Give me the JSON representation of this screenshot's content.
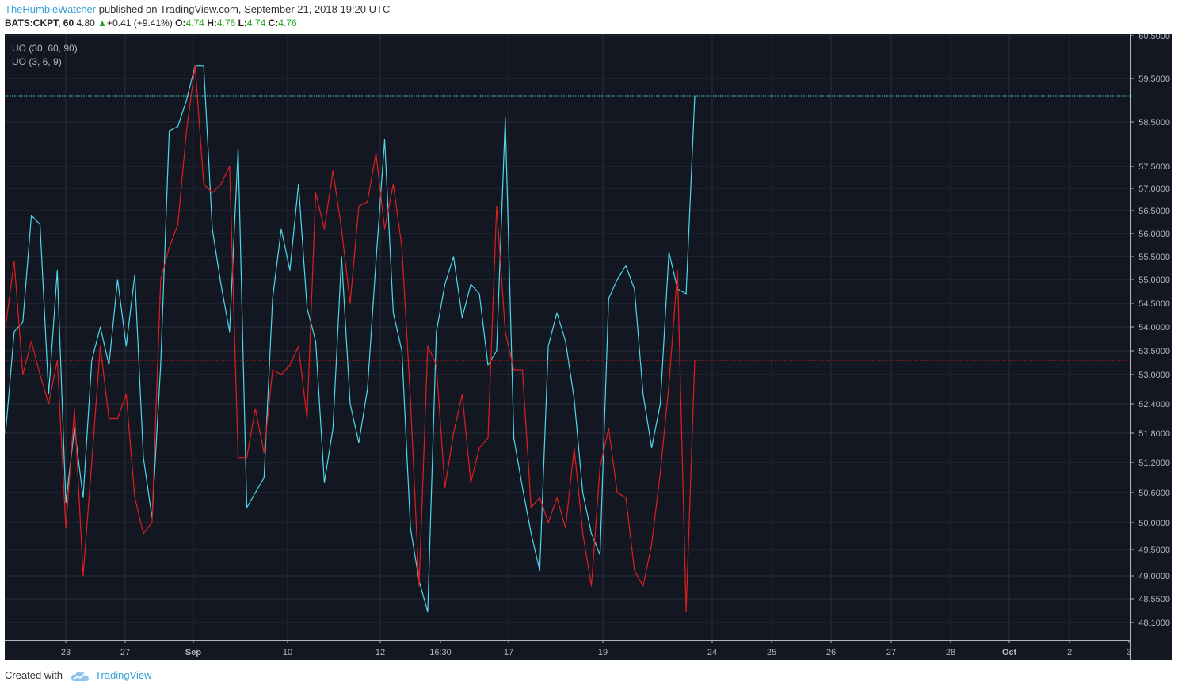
{
  "header": {
    "author": "TheHumbleWatcher",
    "published": "published on TradingView.com, September 21, 2018 19:20 UTC"
  },
  "ticker": {
    "symbol": "BATS:CKPT, 60",
    "price": "4.80",
    "change": "+0.41 (+9.41%)",
    "open_label": "O:",
    "open": "4.74",
    "high_label": "H:",
    "high": "4.76",
    "low_label": "L:",
    "low": "4.74",
    "close_label": "C:",
    "close": "4.76",
    "up_color": "#22a822"
  },
  "footer": {
    "created_with": "Created with",
    "brand": "TradingView"
  },
  "chart_data": {
    "type": "line",
    "background": "#131722",
    "grid": true,
    "legend": [
      "UO (30, 60, 90)",
      "UO (3, 6, 9)"
    ],
    "y_ticks": [
      60.5,
      59.5,
      58.5,
      57.5,
      57.0,
      56.5,
      56.0,
      55.5,
      55.0,
      54.5,
      54.0,
      53.5,
      53.0,
      52.4,
      51.8,
      51.2,
      50.6,
      50.0,
      49.5,
      49.0,
      48.55,
      48.1
    ],
    "y_tick_labels": [
      "60.5000",
      "59.5000",
      "58.5000",
      "57.5000",
      "57.0000",
      "56.5000",
      "56.0000",
      "55.5000",
      "55.0000",
      "54.5000",
      "54.0000",
      "53.5000",
      "53.0000",
      "52.4000",
      "51.8000",
      "51.2000",
      "50.6000",
      "50.0000",
      "49.5000",
      "49.0000",
      "48.5500",
      "48.1000"
    ],
    "x_ticks": [
      {
        "label": "23",
        "bold": false
      },
      {
        "label": "27",
        "bold": false
      },
      {
        "label": "Sep",
        "bold": true
      },
      {
        "label": "10",
        "bold": false
      },
      {
        "label": "12",
        "bold": false
      },
      {
        "label": "16:30",
        "bold": false
      },
      {
        "label": "17",
        "bold": false
      },
      {
        "label": "19",
        "bold": false
      },
      {
        "label": "24",
        "bold": false
      },
      {
        "label": "25",
        "bold": false
      },
      {
        "label": "26",
        "bold": false
      },
      {
        "label": "27",
        "bold": false
      },
      {
        "label": "28",
        "bold": false
      },
      {
        "label": "Oct",
        "bold": true
      },
      {
        "label": "2",
        "bold": false
      },
      {
        "label": "3",
        "bold": false
      }
    ],
    "series": [
      {
        "color": "#4fd8e8",
        "last_value": 59.1,
        "values": [
          51.8,
          53.9,
          54.1,
          56.4,
          56.2,
          52.6,
          55.2,
          50.4,
          51.9,
          50.5,
          53.3,
          54.0,
          53.2,
          55.0,
          53.6,
          55.1,
          51.3,
          50.1,
          53.2,
          58.3,
          58.4,
          59.0,
          59.8,
          59.8,
          56.1,
          54.9,
          53.9,
          57.9,
          50.3,
          50.6,
          50.9,
          54.6,
          56.1,
          55.2,
          57.1,
          54.4,
          53.7,
          50.8,
          51.9,
          55.5,
          52.4,
          51.6,
          52.7,
          55.4,
          58.1,
          54.3,
          53.5,
          49.9,
          48.9,
          48.3,
          53.9,
          54.9,
          55.5,
          54.2,
          54.9,
          54.7,
          53.2,
          53.5,
          58.6,
          51.7,
          50.7,
          49.8,
          49.1,
          53.6,
          54.3,
          53.7,
          52.5,
          50.6,
          49.8,
          49.4,
          54.6,
          55.0,
          55.3,
          54.8,
          52.6,
          51.5,
          52.4,
          55.6,
          54.8,
          54.7,
          59.1
        ]
      },
      {
        "color": "#e01e1e",
        "last_value": 53.3,
        "values": [
          54.0,
          55.4,
          53.0,
          53.7,
          53.0,
          52.4,
          53.3,
          49.9,
          52.3,
          49.0,
          51.2,
          53.6,
          52.1,
          52.1,
          52.6,
          50.5,
          49.8,
          50.0,
          55.0,
          55.7,
          56.2,
          58.3,
          59.8,
          57.1,
          56.9,
          57.1,
          57.5,
          51.3,
          51.3,
          52.3,
          51.4,
          53.1,
          53.0,
          53.2,
          53.6,
          52.1,
          56.9,
          56.1,
          57.4,
          56.1,
          54.5,
          56.6,
          56.7,
          57.8,
          56.1,
          57.1,
          55.7,
          52.5,
          48.8,
          53.6,
          53.2,
          50.7,
          51.8,
          52.6,
          50.8,
          51.5,
          51.7,
          56.6,
          53.9,
          53.1,
          53.1,
          50.3,
          50.5,
          50.0,
          50.5,
          49.9,
          51.5,
          49.8,
          48.8,
          51.1,
          51.9,
          50.6,
          50.5,
          49.1,
          48.8,
          49.6,
          51.0,
          52.8,
          55.2,
          48.3,
          53.3
        ]
      }
    ]
  }
}
